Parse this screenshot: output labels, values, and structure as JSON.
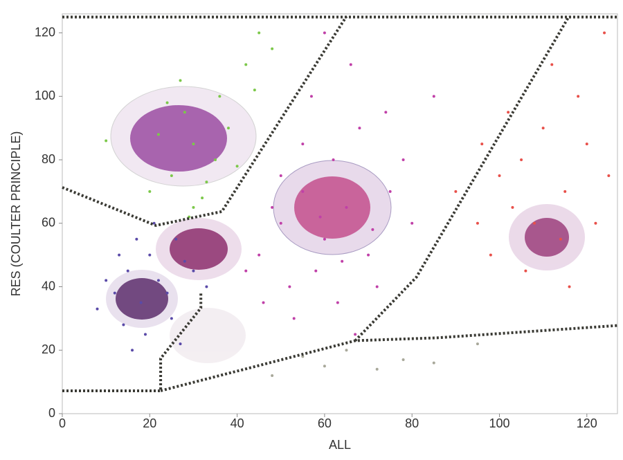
{
  "chart_data": {
    "type": "scatter",
    "x_label": "ALL",
    "y_label": "RES (COULTER PRINCIPLE)",
    "xlim": [
      0,
      127
    ],
    "ylim": [
      0,
      126
    ],
    "xticks": [
      0,
      20,
      40,
      60,
      80,
      100,
      120
    ],
    "yticks": [
      0,
      20,
      40,
      60,
      80,
      100,
      120
    ],
    "series": [
      {
        "color": "#5a4aa8",
        "x": [
          12,
          15,
          18,
          20,
          22,
          25,
          14,
          28,
          10,
          17,
          24,
          30,
          19,
          8,
          26,
          13,
          21,
          33,
          16,
          27
        ],
        "y": [
          38,
          45,
          35,
          50,
          42,
          30,
          28,
          48,
          42,
          55,
          38,
          45,
          25,
          33,
          55,
          50,
          60,
          40,
          20,
          22
        ]
      },
      {
        "color": "#7cc84a",
        "x": [
          25,
          30,
          28,
          35,
          20,
          32,
          38,
          27,
          42,
          45,
          22,
          36,
          40,
          30,
          48,
          33,
          24,
          44,
          29,
          10
        ],
        "y": [
          75,
          85,
          95,
          80,
          70,
          68,
          90,
          105,
          110,
          120,
          88,
          100,
          78,
          65,
          115,
          73,
          98,
          102,
          62,
          86
        ]
      },
      {
        "color": "#c040a8",
        "x": [
          45,
          50,
          55,
          60,
          65,
          58,
          70,
          52,
          62,
          68,
          75,
          48,
          55,
          72,
          63,
          80,
          57,
          66,
          74,
          53,
          78,
          60,
          42,
          85,
          50,
          67,
          46,
          71,
          59,
          64
        ],
        "y": [
          50,
          60,
          70,
          55,
          65,
          45,
          50,
          40,
          80,
          90,
          70,
          65,
          85,
          40,
          35,
          60,
          100,
          110,
          95,
          30,
          80,
          120,
          45,
          100,
          75,
          25,
          35,
          58,
          62,
          48
        ]
      },
      {
        "color": "#e8504a",
        "x": [
          95,
          100,
          105,
          110,
          115,
          120,
          108,
          98,
          118,
          112,
          102,
          125,
          90,
          106,
          122,
          116,
          96,
          124,
          103,
          114
        ],
        "y": [
          60,
          75,
          80,
          90,
          70,
          85,
          60,
          50,
          100,
          110,
          95,
          75,
          70,
          45,
          60,
          40,
          85,
          120,
          65,
          55
        ]
      },
      {
        "color": "#a8a89a",
        "x": [
          55,
          60,
          72,
          78,
          95,
          48,
          85,
          65
        ],
        "y": [
          18,
          15,
          14,
          17,
          22,
          12,
          16,
          20
        ]
      }
    ],
    "gates": [
      {
        "x": [
          0,
          22.5,
          22.5,
          31.7,
          31.7
        ],
        "y": [
          7.2,
          7.2,
          17.4,
          33.3,
          38
        ]
      },
      {
        "x": [
          22.5,
          67,
          85.7,
          127.3
        ],
        "y": [
          7.2,
          23,
          23.9,
          27.8
        ]
      },
      {
        "x": [
          0,
          21.4,
          36.5,
          65
        ],
        "y": [
          71.3,
          59.3,
          63.7,
          125.2
        ]
      },
      {
        "x": [
          67,
          81,
          115.9
        ],
        "y": [
          23,
          43,
          125.2
        ]
      },
      {
        "x": [
          0,
          127.3
        ],
        "y": [
          125,
          125
        ]
      }
    ]
  }
}
